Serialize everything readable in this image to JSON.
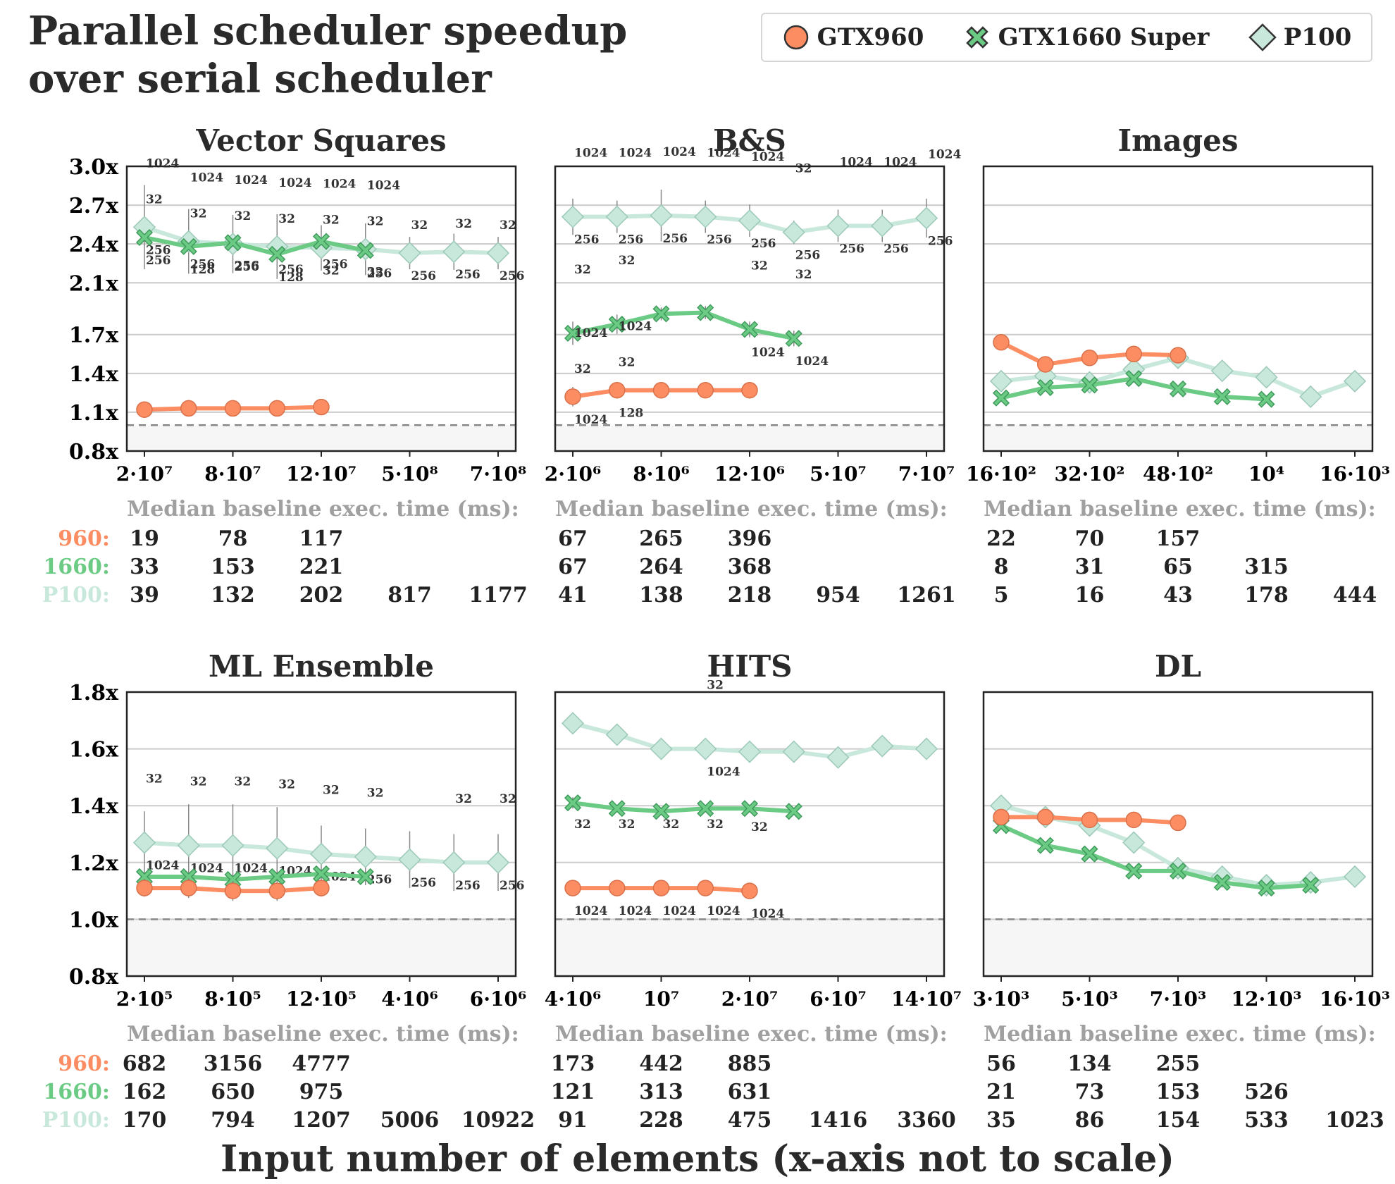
{
  "figure": {
    "title": "Parallel scheduler speedup\nover serial scheduler",
    "xlabel": "Input number of elements (x-axis not to scale)",
    "baseline_heading": "Median baseline exec. time (ms):",
    "row_labels": [
      "960:",
      "1660:",
      "P100:"
    ],
    "legend": [
      {
        "name": "GTX960",
        "marker": "circle",
        "color": "#fc8d62"
      },
      {
        "name": "GTX1660 Super",
        "marker": "x",
        "color": "#66c2a5"
      },
      {
        "name": "P100",
        "marker": "diamond",
        "color": "#b3e2cd"
      }
    ],
    "colors": {
      "gtx960": "#fc8d62",
      "gtx1660": "#6bcb84",
      "p100": "#c9e8dc",
      "baseline_line": "#888888"
    }
  },
  "chart_data": [
    {
      "type": "line",
      "title": "Vector Squares",
      "ylim": [
        0.8,
        3.0
      ],
      "yticks": [
        "0.8x",
        "1.1x",
        "1.4x",
        "1.7x",
        "2.1x",
        "2.4x",
        "2.7x",
        "3.0x"
      ],
      "xtick_labels": [
        "2·10⁷",
        "8·10⁷",
        "12·10⁷",
        "5·10⁸",
        "7·10⁸"
      ],
      "series": [
        {
          "name": "GTX960",
          "values": [
            1.12,
            1.13,
            1.13,
            1.13,
            1.14
          ],
          "err": [
            0.06,
            0.05,
            0.05,
            0.05,
            0.05
          ],
          "top": [],
          "bottom": []
        },
        {
          "name": "GTX1660 Super",
          "values": [
            2.45,
            2.38,
            2.41,
            2.32,
            2.42,
            2.35
          ],
          "err": [
            0,
            0,
            0,
            0,
            0,
            0
          ],
          "top": [],
          "bottom": [
            "256",
            "128",
            "256",
            "128",
            "256",
            "256"
          ]
        },
        {
          "name": "P100",
          "values": [
            2.53,
            2.42,
            2.4,
            2.38,
            2.37,
            2.36,
            2.33,
            2.34,
            2.33
          ],
          "err": [
            0.65,
            0.5,
            0.45,
            0.5,
            0.35,
            0.4,
            0.25,
            0.28,
            0.25
          ],
          "top": [
            "1024",
            "1024",
            "1024",
            "1024",
            "1024",
            "1024",
            "",
            "",
            ""
          ],
          "top2": [
            "32",
            "32",
            "32",
            "32",
            "32",
            "32",
            "32",
            "32",
            "32"
          ],
          "bottom": [
            "256",
            "256",
            "256",
            "256",
            "32",
            "32",
            "256",
            "256",
            "256"
          ]
        }
      ],
      "baseline": [
        [
          "19",
          "78",
          "117"
        ],
        [
          "33",
          "153",
          "221"
        ],
        [
          "39",
          "132",
          "202",
          "817",
          "1177"
        ]
      ]
    },
    {
      "type": "line",
      "title": "B&S",
      "ylim": [
        0.8,
        3.0
      ],
      "xtick_labels": [
        "2·10⁶",
        "8·10⁶",
        "12·10⁶",
        "5·10⁷",
        "7·10⁷"
      ],
      "series": [
        {
          "name": "GTX960",
          "values": [
            1.22,
            1.27,
            1.27,
            1.27,
            1.27
          ],
          "err": [
            0.15,
            0.1,
            0.1,
            0.1,
            0.1
          ],
          "top": [
            "1024",
            "1024",
            "",
            "",
            ""
          ],
          "top2": [
            "32",
            "32",
            "",
            "",
            ""
          ],
          "bottom": [
            "1024",
            "128",
            "",
            "",
            ""
          ]
        },
        {
          "name": "GTX1660 Super",
          "values": [
            1.71,
            1.78,
            1.86,
            1.87,
            1.74,
            1.67
          ],
          "err": [
            0.18,
            0.15,
            0.1,
            0.1,
            0.12,
            0.12
          ],
          "top": [
            "32",
            "32",
            "",
            "",
            "32",
            "32"
          ],
          "bottom": [
            "",
            "",
            "",
            "",
            "1024",
            "1024"
          ]
        },
        {
          "name": "P100",
          "values": [
            2.61,
            2.61,
            2.62,
            2.61,
            2.58,
            2.49,
            2.54,
            2.54,
            2.6
          ],
          "err": [
            0.28,
            0.25,
            0.4,
            0.25,
            0.25,
            0.18,
            0.25,
            0.25,
            0.3
          ],
          "top": [
            "1024",
            "1024",
            "1024",
            "1024",
            "1024",
            "32",
            "1024",
            "1024",
            "1024"
          ],
          "bottom": [
            "256",
            "256",
            "256",
            "256",
            "256",
            "256",
            "256",
            "256",
            "256"
          ]
        }
      ],
      "baseline": [
        [
          "67",
          "265",
          "396"
        ],
        [
          "67",
          "264",
          "368"
        ],
        [
          "41",
          "138",
          "218",
          "954",
          "1261"
        ]
      ]
    },
    {
      "type": "line",
      "title": "Images",
      "ylim": [
        0.8,
        3.0
      ],
      "xtick_labels": [
        "16·10²",
        "32·10²",
        "48·10²",
        "10⁴",
        "16·10³"
      ],
      "series": [
        {
          "name": "GTX960",
          "values": [
            1.64,
            1.47,
            1.52,
            1.55,
            1.54
          ],
          "err": [],
          "top": [],
          "bottom": []
        },
        {
          "name": "GTX1660 Super",
          "values": [
            1.21,
            1.29,
            1.31,
            1.36,
            1.28,
            1.22,
            1.2
          ],
          "err": [],
          "top": [],
          "bottom": []
        },
        {
          "name": "P100",
          "values": [
            1.34,
            1.38,
            1.33,
            1.43,
            1.52,
            1.42,
            1.37,
            1.22,
            1.34
          ],
          "err": [],
          "top": [],
          "bottom": []
        }
      ],
      "baseline": [
        [
          "22",
          "70",
          "157"
        ],
        [
          "8",
          "31",
          "65",
          "315"
        ],
        [
          "5",
          "16",
          "43",
          "178",
          "444"
        ]
      ]
    },
    {
      "type": "line",
      "title": "ML Ensemble",
      "ylim": [
        0.8,
        1.8
      ],
      "yticks": [
        "0.8x",
        "1.0x",
        "1.2x",
        "1.4x",
        "1.6x",
        "1.8x"
      ],
      "xtick_labels": [
        "2·10⁵",
        "8·10⁵",
        "12·10⁵",
        "4·10⁶",
        "6·10⁶"
      ],
      "series": [
        {
          "name": "GTX960",
          "values": [
            1.11,
            1.11,
            1.1,
            1.1,
            1.11
          ],
          "err": [
            0.06,
            0.07,
            0.07,
            0.07,
            0.06
          ],
          "top": [],
          "bottom": []
        },
        {
          "name": "GTX1660 Super",
          "values": [
            1.15,
            1.15,
            1.14,
            1.15,
            1.16,
            1.15
          ],
          "err": [
            0,
            0,
            0,
            0,
            0,
            0
          ],
          "top": [],
          "bottom": []
        },
        {
          "name": "P100",
          "values": [
            1.27,
            1.26,
            1.26,
            1.25,
            1.23,
            1.22,
            1.21,
            1.2,
            1.2
          ],
          "err": [
            0.22,
            0.29,
            0.29,
            0.29,
            0.2,
            0.2,
            0.2,
            0.2,
            0.2
          ],
          "top": [
            "32",
            "32",
            "32",
            "32",
            "32",
            "32",
            "",
            "32",
            "32"
          ],
          "bottom": [
            "1024",
            "1024",
            "1024",
            "1024",
            "1024",
            "256",
            "256",
            "256",
            "256"
          ]
        }
      ],
      "baseline": [
        [
          "682",
          "3156",
          "4777"
        ],
        [
          "162",
          "650",
          "975"
        ],
        [
          "170",
          "794",
          "1207",
          "5006",
          "10922"
        ]
      ]
    },
    {
      "type": "line",
      "title": "HITS",
      "ylim": [
        0.8,
        1.8
      ],
      "xtick_labels": [
        "4·10⁶",
        "10⁷",
        "2·10⁷",
        "6·10⁷",
        "14·10⁷"
      ],
      "series": [
        {
          "name": "GTX960",
          "values": [
            1.11,
            1.11,
            1.11,
            1.11,
            1.1
          ],
          "err": [
            0.05,
            0.05,
            0.05,
            0.05,
            0.05
          ],
          "top": [
            "32",
            "32",
            "32",
            "32",
            "32"
          ],
          "bottom": [
            "1024",
            "1024",
            "1024",
            "1024",
            "1024"
          ]
        },
        {
          "name": "GTX1660 Super",
          "values": [
            1.41,
            1.39,
            1.38,
            1.39,
            1.39,
            1.38
          ],
          "err": [
            0.04,
            0.02,
            0.02,
            0.02,
            0.02,
            0.02
          ],
          "top": [],
          "bottom": []
        },
        {
          "name": "P100",
          "values": [
            1.69,
            1.65,
            1.6,
            1.6,
            1.59,
            1.59,
            1.57,
            1.61,
            1.6
          ],
          "err": [
            0,
            0,
            0,
            0.05,
            0,
            0,
            0,
            0,
            0
          ],
          "top": [
            "",
            "",
            "",
            "32",
            "",
            "",
            "",
            "",
            ""
          ],
          "bottom": [
            "",
            "",
            "",
            "1024",
            "",
            "",
            "",
            "",
            ""
          ]
        }
      ],
      "baseline": [
        [
          "173",
          "442",
          "885"
        ],
        [
          "121",
          "313",
          "631"
        ],
        [
          "91",
          "228",
          "475",
          "1416",
          "3360"
        ]
      ]
    },
    {
      "type": "line",
      "title": "DL",
      "ylim": [
        0.8,
        1.8
      ],
      "xtick_labels": [
        "3·10³",
        "5·10³",
        "7·10³",
        "12·10³",
        "16·10³"
      ],
      "series": [
        {
          "name": "GTX960",
          "values": [
            1.36,
            1.36,
            1.35,
            1.35,
            1.34
          ],
          "err": [],
          "top": [],
          "bottom": []
        },
        {
          "name": "GTX1660 Super",
          "values": [
            1.33,
            1.26,
            1.23,
            1.17,
            1.17,
            1.13,
            1.11,
            1.12
          ],
          "err": [],
          "top": [],
          "bottom": []
        },
        {
          "name": "P100",
          "values": [
            1.4,
            1.36,
            1.33,
            1.27,
            1.18,
            1.15,
            1.12,
            1.13,
            1.15
          ],
          "err": [],
          "top": [],
          "bottom": []
        }
      ],
      "baseline": [
        [
          "56",
          "134",
          "255"
        ],
        [
          "21",
          "73",
          "153",
          "526"
        ],
        [
          "35",
          "86",
          "154",
          "533",
          "1023"
        ]
      ]
    }
  ]
}
